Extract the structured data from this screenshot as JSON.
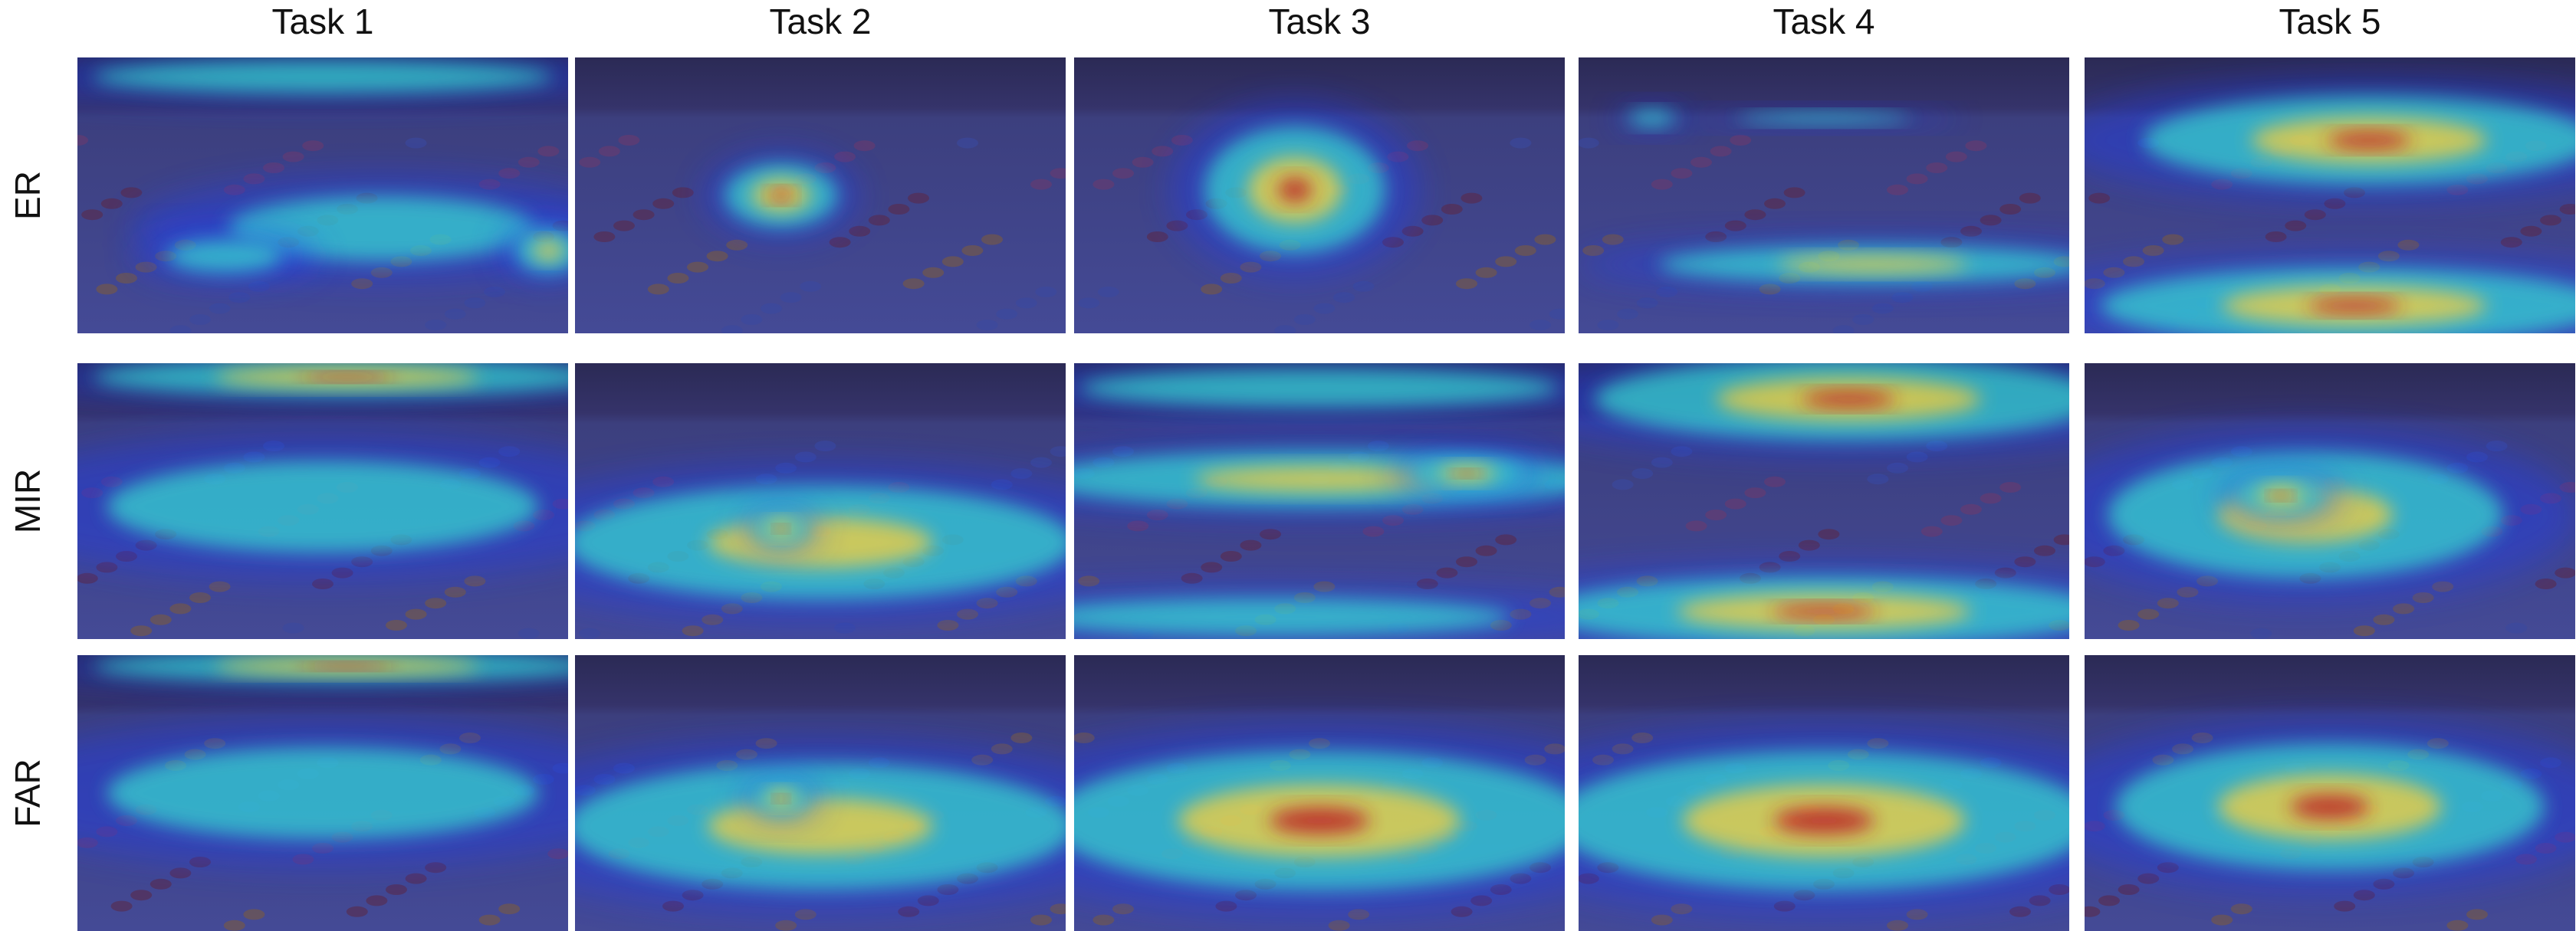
{
  "columns": [
    "Task 1",
    "Task 2",
    "Task 3",
    "Task 4",
    "Task 5"
  ],
  "rows": [
    "ER",
    "MIR",
    "FAR"
  ]
}
